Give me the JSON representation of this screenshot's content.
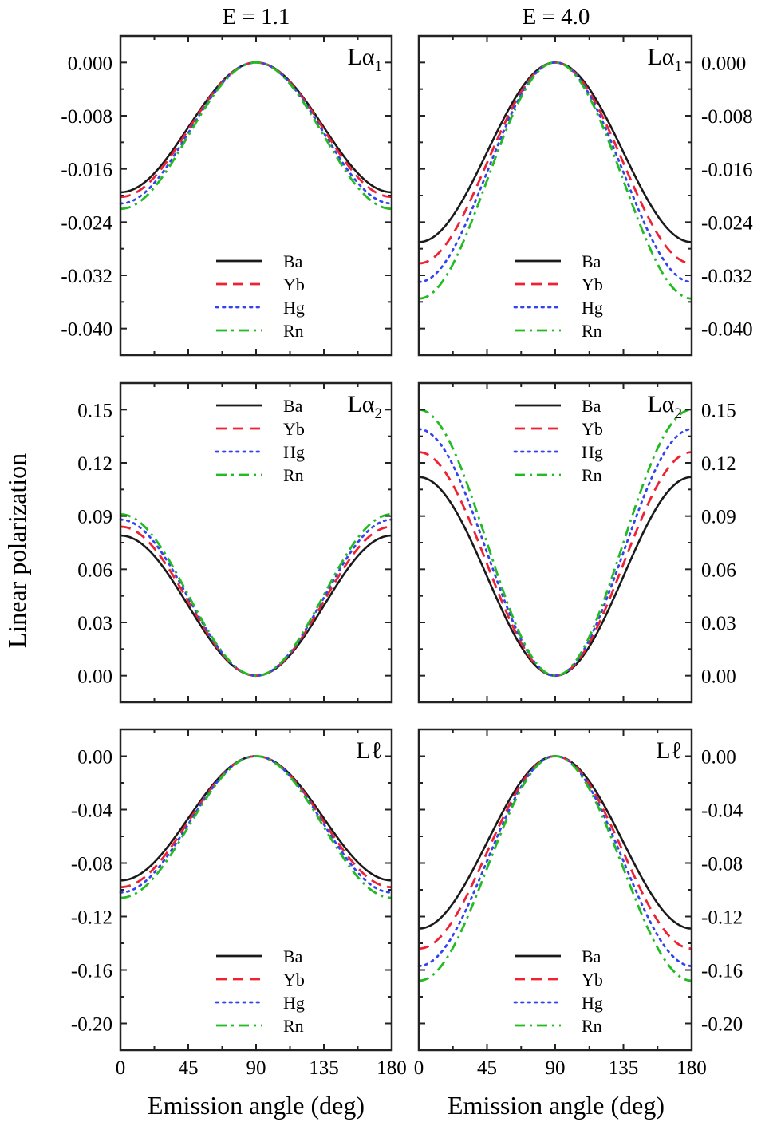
{
  "column_titles": [
    "E = 1.1",
    "E = 4.0"
  ],
  "xlabel": "Emission angle (deg)",
  "ylabel": "Linear polarization",
  "series_styles": {
    "Ba": {
      "color": "#1a1a1a",
      "dash": "solid"
    },
    "Yb": {
      "color": "#ee2233",
      "dash": "dash"
    },
    "Hg": {
      "color": "#3344ee",
      "dash": "dot"
    },
    "Rn": {
      "color": "#22bb22",
      "dash": "dashdot"
    }
  },
  "chart_data": [
    {
      "type": "line",
      "row": 0,
      "col": 0,
      "label_main": "Lα",
      "label_sub": "1",
      "yaxis_side": "left",
      "xlim": [
        0,
        180
      ],
      "ylim": [
        -0.044,
        0.004
      ],
      "xticks": [
        "0",
        "45",
        "90",
        "135",
        "180"
      ],
      "xtick_values": [
        0,
        45,
        90,
        135,
        180
      ],
      "yticks": [
        "0.000",
        "-0.008",
        "-0.016",
        "-0.024",
        "-0.032",
        "-0.040"
      ],
      "ytick_values": [
        0,
        -0.008,
        -0.016,
        -0.024,
        -0.032,
        -0.04
      ],
      "legend": "lower-center",
      "series": [
        {
          "name": "Ba",
          "angles": [
            0,
            45,
            90,
            135,
            180
          ],
          "values": [
            -0.0195,
            -0.00975,
            0,
            -0.00975,
            -0.0195
          ]
        },
        {
          "name": "Yb",
          "angles": [
            0,
            45,
            90,
            135,
            180
          ],
          "values": [
            -0.0202,
            -0.0101,
            0,
            -0.0101,
            -0.0202
          ]
        },
        {
          "name": "Hg",
          "angles": [
            0,
            45,
            90,
            135,
            180
          ],
          "values": [
            -0.0212,
            -0.0106,
            0,
            -0.0106,
            -0.0212
          ]
        },
        {
          "name": "Rn",
          "angles": [
            0,
            45,
            90,
            135,
            180
          ],
          "values": [
            -0.022,
            -0.011,
            0,
            -0.011,
            -0.022
          ]
        }
      ]
    },
    {
      "type": "line",
      "row": 0,
      "col": 1,
      "label_main": "Lα",
      "label_sub": "1",
      "yaxis_side": "right",
      "xlim": [
        0,
        180
      ],
      "ylim": [
        -0.044,
        0.004
      ],
      "xticks": [
        "0",
        "45",
        "90",
        "135",
        "180"
      ],
      "xtick_values": [
        0,
        45,
        90,
        135,
        180
      ],
      "yticks": [
        "0.000",
        "-0.008",
        "-0.016",
        "-0.024",
        "-0.032",
        "-0.040"
      ],
      "ytick_values": [
        0,
        -0.008,
        -0.016,
        -0.024,
        -0.032,
        -0.04
      ],
      "legend": "lower-center",
      "series": [
        {
          "name": "Ba",
          "angles": [
            0,
            45,
            90,
            135,
            180
          ],
          "values": [
            -0.027,
            -0.0135,
            0,
            -0.0135,
            -0.027
          ]
        },
        {
          "name": "Yb",
          "angles": [
            0,
            45,
            90,
            135,
            180
          ],
          "values": [
            -0.0302,
            -0.0151,
            0,
            -0.0151,
            -0.0302
          ]
        },
        {
          "name": "Hg",
          "angles": [
            0,
            45,
            90,
            135,
            180
          ],
          "values": [
            -0.033,
            -0.0165,
            0,
            -0.0165,
            -0.033
          ]
        },
        {
          "name": "Rn",
          "angles": [
            0,
            45,
            90,
            135,
            180
          ],
          "values": [
            -0.0355,
            -0.01775,
            0,
            -0.01775,
            -0.0355
          ]
        }
      ]
    },
    {
      "type": "line",
      "row": 1,
      "col": 0,
      "label_main": "Lα",
      "label_sub": "2",
      "yaxis_side": "left",
      "xlim": [
        0,
        180
      ],
      "ylim": [
        -0.015,
        0.165
      ],
      "xticks": [
        "0",
        "45",
        "90",
        "135",
        "180"
      ],
      "xtick_values": [
        0,
        45,
        90,
        135,
        180
      ],
      "yticks": [
        "0.15",
        "0.12",
        "0.09",
        "0.06",
        "0.03",
        "0.00"
      ],
      "ytick_values": [
        0.15,
        0.12,
        0.09,
        0.06,
        0.03,
        0
      ],
      "legend": "upper-center",
      "series": [
        {
          "name": "Ba",
          "angles": [
            0,
            45,
            90,
            135,
            180
          ],
          "values": [
            0.079,
            0.0395,
            0,
            0.0395,
            0.079
          ]
        },
        {
          "name": "Yb",
          "angles": [
            0,
            45,
            90,
            135,
            180
          ],
          "values": [
            0.084,
            0.042,
            0,
            0.042,
            0.084
          ]
        },
        {
          "name": "Hg",
          "angles": [
            0,
            45,
            90,
            135,
            180
          ],
          "values": [
            0.088,
            0.044,
            0,
            0.044,
            0.088
          ]
        },
        {
          "name": "Rn",
          "angles": [
            0,
            45,
            90,
            135,
            180
          ],
          "values": [
            0.091,
            0.0455,
            0,
            0.0455,
            0.091
          ]
        }
      ]
    },
    {
      "type": "line",
      "row": 1,
      "col": 1,
      "label_main": "Lα",
      "label_sub": "2",
      "yaxis_side": "right",
      "xlim": [
        0,
        180
      ],
      "ylim": [
        -0.015,
        0.165
      ],
      "xticks": [
        "0",
        "45",
        "90",
        "135",
        "180"
      ],
      "xtick_values": [
        0,
        45,
        90,
        135,
        180
      ],
      "yticks": [
        "0.15",
        "0.12",
        "0.09",
        "0.06",
        "0.03",
        "0.00"
      ],
      "ytick_values": [
        0.15,
        0.12,
        0.09,
        0.06,
        0.03,
        0
      ],
      "legend": "upper-center",
      "series": [
        {
          "name": "Ba",
          "angles": [
            0,
            45,
            90,
            135,
            180
          ],
          "values": [
            0.112,
            0.056,
            0,
            0.056,
            0.112
          ]
        },
        {
          "name": "Yb",
          "angles": [
            0,
            45,
            90,
            135,
            180
          ],
          "values": [
            0.126,
            0.063,
            0,
            0.063,
            0.126
          ]
        },
        {
          "name": "Hg",
          "angles": [
            0,
            45,
            90,
            135,
            180
          ],
          "values": [
            0.139,
            0.0695,
            0,
            0.0695,
            0.139
          ]
        },
        {
          "name": "Rn",
          "angles": [
            0,
            45,
            90,
            135,
            180
          ],
          "values": [
            0.15,
            0.075,
            0,
            0.075,
            0.15
          ]
        }
      ]
    },
    {
      "type": "line",
      "row": 2,
      "col": 0,
      "label_main": "Lℓ",
      "label_sub": "",
      "yaxis_side": "left",
      "xlim": [
        0,
        180
      ],
      "ylim": [
        -0.22,
        0.02
      ],
      "xticks": [
        "0",
        "45",
        "90",
        "135",
        "180"
      ],
      "xtick_values": [
        0,
        45,
        90,
        135,
        180
      ],
      "yticks": [
        "0.00",
        "-0.04",
        "-0.08",
        "-0.12",
        "-0.16",
        "-0.20"
      ],
      "ytick_values": [
        0,
        -0.04,
        -0.08,
        -0.12,
        -0.16,
        -0.2
      ],
      "legend": "lower-center",
      "series": [
        {
          "name": "Ba",
          "angles": [
            0,
            45,
            90,
            135,
            180
          ],
          "values": [
            -0.093,
            -0.0465,
            0,
            -0.0465,
            -0.093
          ]
        },
        {
          "name": "Yb",
          "angles": [
            0,
            45,
            90,
            135,
            180
          ],
          "values": [
            -0.098,
            -0.049,
            0,
            -0.049,
            -0.098
          ]
        },
        {
          "name": "Hg",
          "angles": [
            0,
            45,
            90,
            135,
            180
          ],
          "values": [
            -0.102,
            -0.051,
            0,
            -0.051,
            -0.102
          ]
        },
        {
          "name": "Rn",
          "angles": [
            0,
            45,
            90,
            135,
            180
          ],
          "values": [
            -0.106,
            -0.053,
            0,
            -0.053,
            -0.106
          ]
        }
      ]
    },
    {
      "type": "line",
      "row": 2,
      "col": 1,
      "label_main": "Lℓ",
      "label_sub": "",
      "yaxis_side": "right",
      "xlim": [
        0,
        180
      ],
      "ylim": [
        -0.22,
        0.02
      ],
      "xticks": [
        "0",
        "45",
        "90",
        "135",
        "180"
      ],
      "xtick_values": [
        0,
        45,
        90,
        135,
        180
      ],
      "yticks": [
        "0.00",
        "-0.04",
        "-0.08",
        "-0.12",
        "-0.16",
        "-0.20"
      ],
      "ytick_values": [
        0,
        -0.04,
        -0.08,
        -0.12,
        -0.16,
        -0.2
      ],
      "legend": "lower-center",
      "series": [
        {
          "name": "Ba",
          "angles": [
            0,
            45,
            90,
            135,
            180
          ],
          "values": [
            -0.129,
            -0.0645,
            0,
            -0.0645,
            -0.129
          ]
        },
        {
          "name": "Yb",
          "angles": [
            0,
            45,
            90,
            135,
            180
          ],
          "values": [
            -0.144,
            -0.072,
            0,
            -0.072,
            -0.144
          ]
        },
        {
          "name": "Hg",
          "angles": [
            0,
            45,
            90,
            135,
            180
          ],
          "values": [
            -0.157,
            -0.0785,
            0,
            -0.0785,
            -0.157
          ]
        },
        {
          "name": "Rn",
          "angles": [
            0,
            45,
            90,
            135,
            180
          ],
          "values": [
            -0.168,
            -0.084,
            0,
            -0.084,
            -0.168
          ]
        }
      ]
    }
  ]
}
